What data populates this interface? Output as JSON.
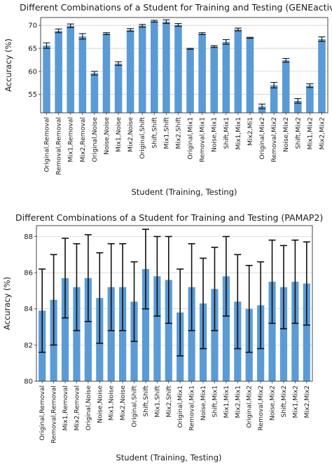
{
  "chart_data": [
    {
      "type": "bar",
      "title": "Different Combinations of a Student for Training and Testing (GENEactiv)",
      "xlabel": "Student (Training, Testing)",
      "ylabel": "Accuracy (%)",
      "ylim": [
        51,
        71.7
      ],
      "yticks": [
        55,
        60,
        65,
        70
      ],
      "grid": true,
      "categories": [
        "Original,Removal",
        "Removal,Removal",
        "Mix1,Removal",
        "Mix2,Removal",
        "Original,Noise",
        "Noise,Noise",
        "Mix1,Noise",
        "Mix2,Noise",
        "Original,Shift",
        "Shift,Shift",
        "Mix1,Shift",
        "Mix2,Shift",
        "Original,Mix1",
        "Removal,Mix1",
        "Noise,Mix1",
        "Shift,Mix1",
        "Mix1,Mix1",
        "Mix2,Mi1",
        "Original,Mix2",
        "Removal,Mix2",
        "Noise,Mix2",
        "Shift,Mix2",
        "Mix1,Mix2",
        "Mix2,Mix2"
      ],
      "values": [
        65.6,
        68.8,
        69.9,
        67.6,
        59.6,
        68.2,
        61.7,
        69.0,
        69.9,
        70.9,
        70.8,
        70.1,
        64.9,
        68.2,
        65.4,
        66.4,
        69.1,
        67.3,
        52.4,
        57.0,
        62.4,
        53.6,
        56.9,
        67.0
      ],
      "errors": [
        0.6,
        0.4,
        0.4,
        0.6,
        0.4,
        0.2,
        0.4,
        0.3,
        0.3,
        0.2,
        0.4,
        0.3,
        0.1,
        0.2,
        0.2,
        0.5,
        0.3,
        0.1,
        0.5,
        0.6,
        0.4,
        0.5,
        0.4,
        0.5
      ],
      "bar_color": "#5b9bd5"
    },
    {
      "type": "bar",
      "title": "Different Combinations of a Student for Training and Testing (PAMAP2)",
      "xlabel": "Student (Training, Testing)",
      "ylabel": "Accuracy (%)",
      "ylim": [
        80,
        88.6
      ],
      "yticks": [
        80,
        82,
        84,
        86,
        88
      ],
      "grid": true,
      "categories": [
        "Original,Removal",
        "Removal,Removal",
        "Mix1,Removal",
        "Mix2,Removal",
        "Original,Noise",
        "Noise,Noise",
        "Mix1,Noise",
        "Mix2,Noise",
        "Original,Shift",
        "Shift,Shift",
        "Mix1,Shift",
        "Mix2,Shift",
        "Original,Mix1",
        "Removal,Mix1",
        "Noise,Mix1",
        "Shift,Mix1",
        "Mix1,Mix1",
        "Mix2,Mix1",
        "Original,Mix2",
        "Removal,Mix2",
        "Noise,Mix2",
        "Shift,Mix2",
        "Mix1,Mix2",
        "Mix2,Mix2"
      ],
      "values": [
        83.9,
        84.5,
        85.7,
        85.2,
        85.7,
        84.6,
        85.2,
        85.2,
        84.4,
        86.2,
        85.8,
        85.6,
        83.8,
        85.2,
        84.3,
        85.1,
        85.8,
        84.4,
        84.0,
        84.2,
        85.5,
        85.2,
        85.5,
        85.4
      ],
      "errors": [
        2.3,
        2.5,
        2.2,
        2.4,
        2.4,
        2.5,
        2.4,
        2.4,
        2.2,
        2.2,
        2.2,
        2.4,
        2.4,
        2.4,
        2.5,
        2.3,
        2.2,
        2.6,
        2.4,
        2.4,
        2.3,
        2.3,
        2.3,
        2.3
      ],
      "bar_color": "#5b9bd5"
    }
  ]
}
